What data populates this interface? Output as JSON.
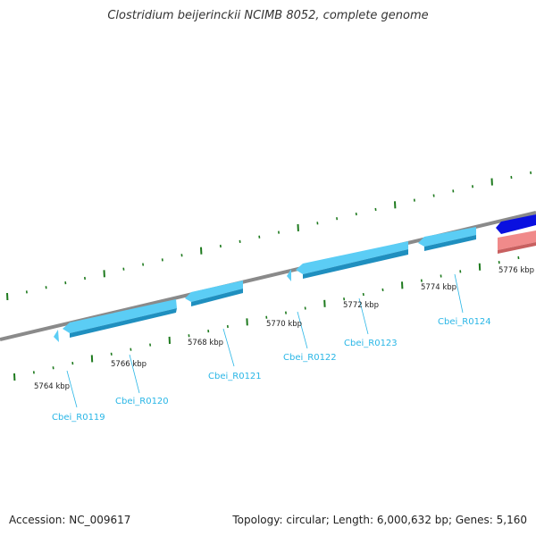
{
  "title": "Clostridium beijerinckii NCIMB 8052, complete genome",
  "footer": {
    "accession": "Accession: NC_009617",
    "summary": "Topology: circular; Length: 6,000,632 bp; Genes: 5,160"
  },
  "colors": {
    "backbone": "#8a8a8a",
    "tick": "#1e7a1e",
    "gene_forward": "#5bcdf5",
    "gene_forward_edge": "#1f8fbf",
    "gene_blue": "#0a10e0",
    "gene_pink": "#f08a8a",
    "label": "#29b6e6"
  },
  "scale_labels": [
    "5764 kbp",
    "5766 kbp",
    "5768 kbp",
    "5770 kbp",
    "5772 kbp",
    "5774 kbp",
    "5776 kbp"
  ],
  "genes": [
    {
      "id": "Cbei_R0119"
    },
    {
      "id": "Cbei_R0120"
    },
    {
      "id": "Cbei_R0121"
    },
    {
      "id": "Cbei_R0122"
    },
    {
      "id": "Cbei_R0123"
    },
    {
      "id": "Cbei_R0124"
    }
  ]
}
